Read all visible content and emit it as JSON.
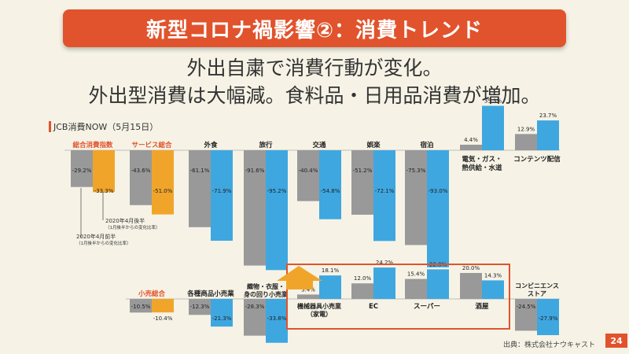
{
  "slide": {
    "title": "新型コロナ禍影響②：消費トレンド",
    "subtitle_line1": "外出自粛で消費行動が変化。",
    "subtitle_line2": "外出型消費は大幅減。食料品・日用品消費が増加。",
    "source": "出典：株式会社ナウキャスト",
    "page_number": "24"
  },
  "chart_data": {
    "type": "bar",
    "title": "JCB消費NOW（5月15日）",
    "series": [
      {
        "name": "2020年4月前半",
        "note": "（1月後半からの変化比率）",
        "color": "#999999"
      },
      {
        "name": "2020年4月後半",
        "note": "（1月後半からの変化比率）",
        "color": "#3ea7e0"
      }
    ],
    "highlight_colors": {
      "summary": "#f0a52a",
      "summary_label": "#e1532c",
      "box": "#e1532c"
    },
    "top_row": [
      {
        "category": "総合消費指数",
        "values": [
          -29.2,
          -33.3
        ],
        "summary": true
      },
      {
        "category": "サービス総合",
        "values": [
          -43.6,
          -51.0
        ],
        "summary": true
      },
      {
        "category": "外食",
        "values": [
          -61.1,
          -71.9
        ]
      },
      {
        "category": "旅行",
        "values": [
          -91.6,
          -95.2
        ]
      },
      {
        "category": "交通",
        "values": [
          -40.4,
          -54.8
        ]
      },
      {
        "category": "娯楽",
        "values": [
          -51.2,
          -72.1
        ]
      },
      {
        "category": "宿泊",
        "values": [
          -75.3,
          -93.0
        ]
      },
      {
        "category": "電気・ガス・熱供給・水道",
        "values": [
          4.4,
          35.3
        ]
      },
      {
        "category": "コンテンツ配信",
        "values": [
          12.9,
          23.7
        ]
      }
    ],
    "bottom_row": [
      {
        "category": "小売総合",
        "values": [
          -10.5,
          -10.4
        ],
        "summary": true
      },
      {
        "category": "各種商品小売業",
        "values": [
          -12.3,
          -21.3
        ]
      },
      {
        "category": "織物・衣服・身の回り小売業",
        "values": [
          -28.3,
          -33.8
        ]
      },
      {
        "category": "機械器具小売業（家電）",
        "values": [
          3.4,
          18.1
        ]
      },
      {
        "category": "EC",
        "values": [
          12.0,
          24.2
        ]
      },
      {
        "category": "スーパー",
        "values": [
          15.4,
          22.8
        ]
      },
      {
        "category": "酒屋",
        "values": [
          20.0,
          14.3
        ]
      },
      {
        "category": "コンビニエンスストア",
        "values": [
          -24.5,
          -27.9
        ]
      }
    ]
  }
}
